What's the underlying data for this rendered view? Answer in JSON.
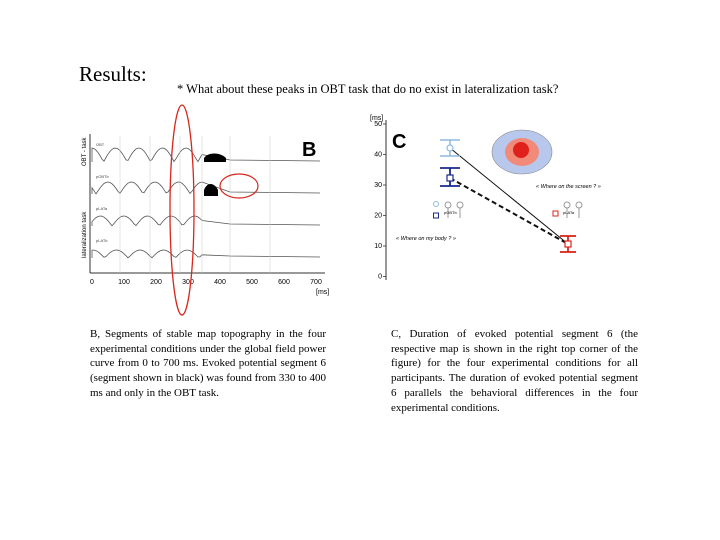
{
  "slide": {
    "heading": "Results:",
    "question": "* What about these peaks in OBT task that do no exist in lateralization task?"
  },
  "figure_b": {
    "panel_letter": "B",
    "side_label_top": "OBT - task",
    "side_label_bottom": "lateralization task",
    "row_labels": [
      "OBT",
      "pOBTb",
      "pLATa",
      "pLATb"
    ],
    "x_ticks": [
      "0",
      "100",
      "200",
      "300",
      "400",
      "500",
      "600",
      "700"
    ],
    "x_unit": "[ms]",
    "colors": {
      "segment": "#000000",
      "ellipse": "#d9261c",
      "curve": "#555555"
    }
  },
  "figure_c": {
    "panel_letter": "C",
    "y_unit": "[ms]",
    "y_ticks": [
      "50",
      "40",
      "30",
      "20",
      "10",
      "0"
    ],
    "screen_label": "« Where on the screen ? »",
    "body_label": "« Where on my body ? »",
    "person_labels": [
      "pOBTb",
      "pLATa"
    ],
    "colors": {
      "obt_light": "#8fb8e0",
      "obt_dark": "#1a2a8c",
      "lat": "#d9261c",
      "map": "#e0201a"
    }
  },
  "captions": {
    "b": "B, Segments of stable map topography in the four experimental conditions under the global field power curve from 0 to 700 ms. Evoked potential segment 6 (segment shown in black) was found from 330 to 400 ms and only in the OBT task.",
    "c": "C, Duration of evoked potential segment 6 (the respective map is shown in the right top corner of the figure) for the four experimental conditions for all participants. The duration of evoked potential segment 6 parallels the behavioral differences in the four experimental conditions."
  }
}
